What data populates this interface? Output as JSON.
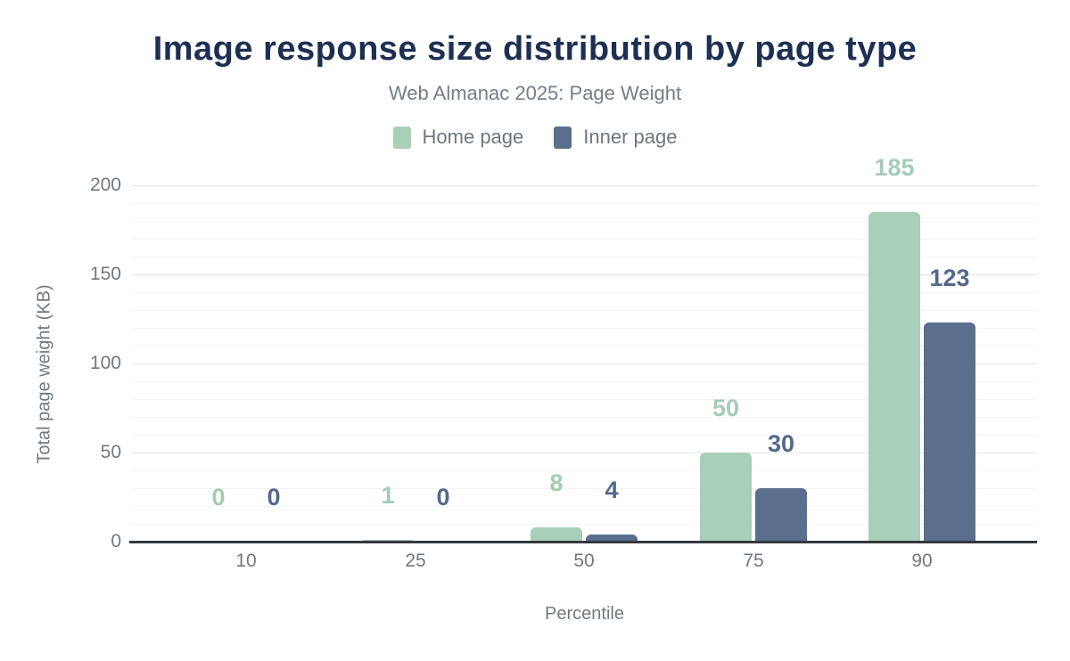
{
  "title": "Image response size distribution by page type",
  "subtitle": "Web Almanac 2025: Page Weight",
  "colors": {
    "home": "#a9cfba",
    "home_label": "#a5cbb6",
    "inner": "#5a6e8e",
    "inner_label": "#54688c",
    "title_text": "#1e2f51",
    "subtitle_text": "#757d88",
    "axis_text": "#71787f",
    "axis_line": "#35393e",
    "grid_major": "#e2e4e7",
    "grid_minor": "#f3f4f6"
  },
  "legend": [
    {
      "label": "Home page",
      "color_key": "home"
    },
    {
      "label": "Inner page",
      "color_key": "inner"
    }
  ],
  "chart_data": {
    "type": "bar",
    "categories": [
      "10",
      "25",
      "50",
      "75",
      "90"
    ],
    "series": [
      {
        "name": "Home page",
        "color_key": "home",
        "label_color_key": "home_label",
        "values": [
          0,
          1,
          8,
          50,
          185
        ]
      },
      {
        "name": "Inner page",
        "color_key": "inner",
        "label_color_key": "inner_label",
        "values": [
          0,
          0,
          4,
          30,
          123
        ]
      }
    ],
    "title": "Image response size distribution by page type",
    "subtitle": "Web Almanac 2025: Page Weight",
    "xlabel": "Percentile",
    "ylabel": "Total page weight (KB)",
    "ylim": [
      0,
      200
    ],
    "yticks": [
      0,
      50,
      100,
      150,
      200
    ],
    "minor_grid_step": 10,
    "grid": "horizontal",
    "legend_position": "top",
    "data_labels": true
  }
}
